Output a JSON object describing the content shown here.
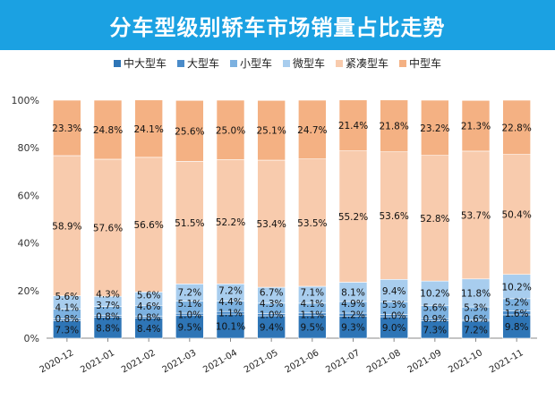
{
  "title": "分车型级别轿车市场销量占比走势",
  "chart_data": {
    "type": "bar",
    "stacked": true,
    "title": "分车型级别轿车市场销量占比走势",
    "categories": [
      "2020-12",
      "2021-01",
      "2021-02",
      "2021-03",
      "2021-04",
      "2021-05",
      "2021-06",
      "2021-07",
      "2021-08",
      "2021-09",
      "2021-10",
      "2021-11"
    ],
    "ylim": [
      0,
      100
    ],
    "yticks": [
      "0%",
      "20%",
      "40%",
      "60%",
      "80%",
      "100%"
    ],
    "legend_position": "top",
    "grid": false,
    "series": [
      {
        "name": "中大型车",
        "color": "#2e75b6",
        "values": [
          7.3,
          8.8,
          8.4,
          9.5,
          10.1,
          9.4,
          9.5,
          9.3,
          9.0,
          7.3,
          7.2,
          9.8
        ]
      },
      {
        "name": "大型车",
        "color": "#4a8bc9",
        "values": [
          0.8,
          0.8,
          0.8,
          1.0,
          1.1,
          1.0,
          1.1,
          1.2,
          1.0,
          0.9,
          0.6,
          1.6
        ]
      },
      {
        "name": "小型车",
        "color": "#7cb1e0",
        "values": [
          4.1,
          3.7,
          4.6,
          5.1,
          4.4,
          4.3,
          4.1,
          4.9,
          5.3,
          5.6,
          5.3,
          5.2
        ]
      },
      {
        "name": "微型车",
        "color": "#a8cdee",
        "values": [
          5.6,
          4.3,
          5.6,
          7.2,
          7.2,
          6.7,
          7.1,
          8.1,
          9.4,
          10.2,
          11.8,
          10.2
        ]
      },
      {
        "name": "紧凑型车",
        "color": "#f8cbad",
        "values": [
          58.9,
          57.6,
          56.6,
          51.5,
          52.2,
          53.4,
          53.5,
          55.2,
          53.6,
          52.8,
          53.7,
          50.4
        ]
      },
      {
        "name": "中型车",
        "color": "#f4b183",
        "values": [
          23.3,
          24.8,
          24.1,
          25.6,
          25.0,
          25.1,
          24.7,
          21.4,
          21.8,
          23.2,
          21.3,
          22.8
        ]
      }
    ]
  }
}
